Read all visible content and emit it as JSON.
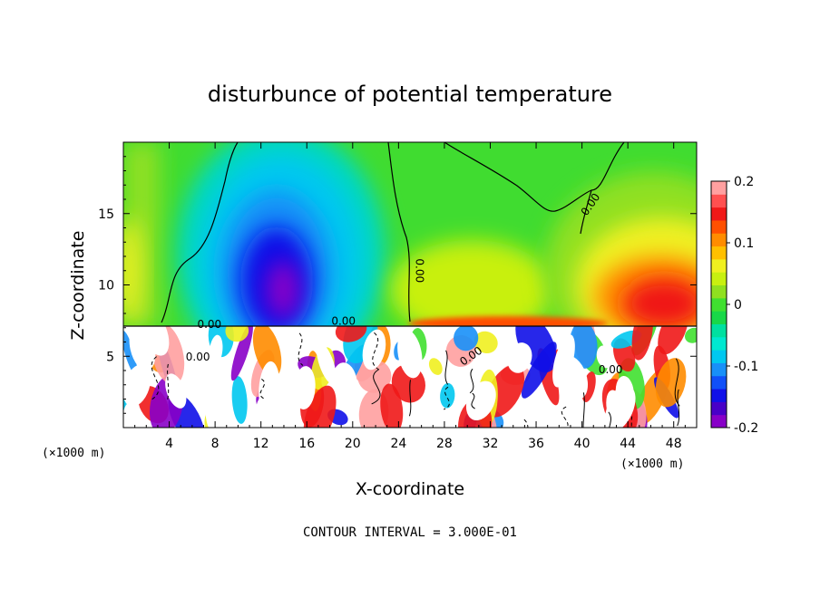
{
  "chart_data": {
    "type": "heatmap",
    "title": "disturbunce of potential temperature",
    "xlabel": "X-coordinate",
    "ylabel": "Z-coordinate",
    "x_unit_left": "(×1000 m)",
    "x_unit_right": "(×1000 m)",
    "xlim": [
      0,
      50
    ],
    "ylim": [
      0,
      20
    ],
    "xticks": [
      4,
      8,
      12,
      16,
      20,
      24,
      28,
      32,
      36,
      40,
      44,
      48
    ],
    "yticks": [
      5,
      10,
      15
    ],
    "colorbar": {
      "range": [
        -0.2,
        0.2
      ],
      "ticks": [
        {
          "value": 0.2,
          "label": "0.2"
        },
        {
          "value": 0.1,
          "label": "0.1"
        },
        {
          "value": 0,
          "label": "0"
        },
        {
          "value": -0.1,
          "label": "-0.1"
        },
        {
          "value": -0.2,
          "label": "-0.2"
        }
      ],
      "colors": [
        "#8800c8",
        "#4800c8",
        "#1010e8",
        "#1050f8",
        "#1890f8",
        "#00c8f0",
        "#00e8d0",
        "#00e0a0",
        "#18d848",
        "#40e030",
        "#90e020",
        "#c8f010",
        "#f0f020",
        "#ffc000",
        "#ff8c00",
        "#ff5000",
        "#f01818",
        "#ff5050",
        "#ffa0a0"
      ]
    },
    "contour_labels": [
      {
        "text": "0.00",
        "x": 25.5,
        "z": 11.0
      },
      {
        "text": "0.00",
        "x": 41.0,
        "z": 15.5
      },
      {
        "text": "0.00",
        "x": 19.2,
        "z": 7.2
      },
      {
        "text": "0.00",
        "x": 7.5,
        "z": 7.0
      },
      {
        "text": "0.00",
        "x": 6.5,
        "z": 4.7
      },
      {
        "text": "0.00",
        "x": 30.5,
        "z": 4.8
      },
      {
        "text": "0.00",
        "x": 42.5,
        "z": 3.8
      }
    ],
    "features": [
      {
        "type": "minimum",
        "x": 14.5,
        "z": 10.5,
        "value": -0.2
      },
      {
        "type": "maximum",
        "x": 45.0,
        "z": 10.0,
        "value": 0.15
      }
    ],
    "footer": "CONTOUR INTERVAL = 3.000E-01"
  }
}
